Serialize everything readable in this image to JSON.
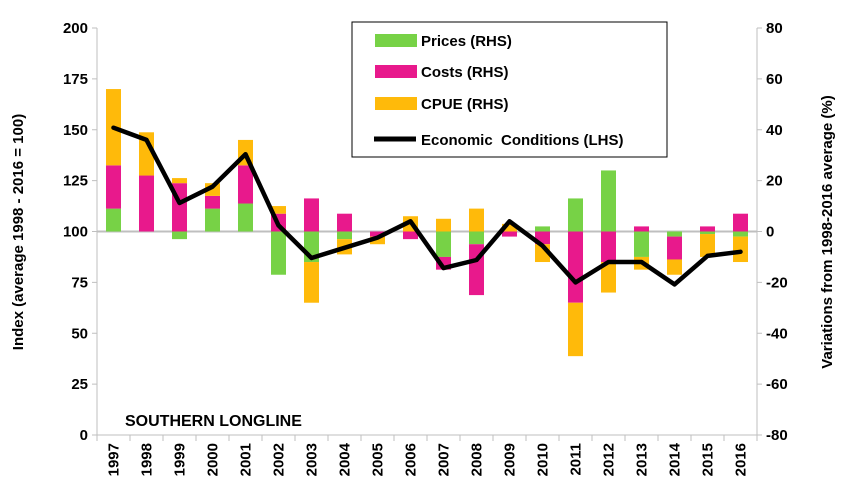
{
  "chart_data": {
    "type": "bar",
    "stacked": true,
    "categories": [
      "1997",
      "1998",
      "1999",
      "2000",
      "2001",
      "2002",
      "2003",
      "2004",
      "2005",
      "2006",
      "2007",
      "2008",
      "2009",
      "2010",
      "2011",
      "2012",
      "2013",
      "2014",
      "2015",
      "2016"
    ],
    "series": [
      {
        "name": "Prices (RHS)",
        "axis": "right",
        "color": "#77d246",
        "values": [
          9,
          0,
          -3,
          9,
          11,
          -17,
          -12,
          -3,
          0,
          0,
          -10,
          -5,
          0,
          2,
          13,
          24,
          -10,
          -2,
          -1,
          -2
        ]
      },
      {
        "name": "Costs (RHS)",
        "axis": "right",
        "color": "#e8198c",
        "values": [
          17,
          22,
          19,
          5,
          15,
          7,
          13,
          7,
          -2,
          -3,
          -5,
          -20,
          -2,
          -5,
          -28,
          -12,
          2,
          -9,
          2,
          7
        ]
      },
      {
        "name": "CPUE (RHS)",
        "axis": "right",
        "color": "#ffba0a",
        "values": [
          30,
          17,
          2,
          5,
          10,
          3,
          -16,
          -6,
          -3,
          6,
          5,
          9,
          3,
          -7,
          -21,
          -12,
          -5,
          -6,
          -9,
          -10
        ]
      }
    ],
    "line": {
      "name": "Economic  Conditions (LHS)",
      "axis": "left",
      "color": "#000000",
      "values": [
        151,
        145,
        114,
        122,
        138,
        103,
        87,
        92,
        97,
        105,
        82,
        86,
        105,
        93,
        75,
        85,
        85,
        74,
        88,
        90
      ]
    },
    "y_left": {
      "label": "Index (average 1998 - 2016 = 100)",
      "ylim": [
        0,
        200
      ],
      "ticks": [
        0,
        25,
        50,
        75,
        100,
        125,
        150,
        175,
        200
      ]
    },
    "y_right": {
      "label": "Variations  from 1998-2016 average (%)",
      "ylim": [
        -80,
        80
      ],
      "ticks": [
        -80,
        -60,
        -40,
        -20,
        0,
        20,
        40,
        60,
        80
      ]
    },
    "reference_line": {
      "axis": "left",
      "value": 100,
      "color": "#bfbfbf"
    },
    "annotation": "SOUTHERN LONGLINE",
    "legend_position": "top-center",
    "grid": false
  }
}
